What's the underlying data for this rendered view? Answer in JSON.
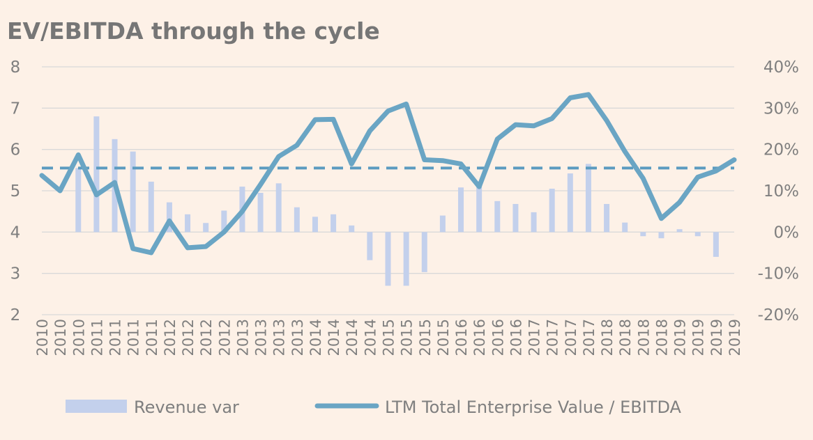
{
  "chart_data": {
    "type": "bar+line",
    "title": "EV/EBITDA through the cycle",
    "x": [
      "2010",
      "2010",
      "2010",
      "2011",
      "2011",
      "2011",
      "2011",
      "2012",
      "2012",
      "2012",
      "2012",
      "2013",
      "2013",
      "2013",
      "2013",
      "2014",
      "2014",
      "2014",
      "2014",
      "2015",
      "2015",
      "2015",
      "2015",
      "2016",
      "2016",
      "2016",
      "2016",
      "2017",
      "2017",
      "2017",
      "2017",
      "2018",
      "2018",
      "2018",
      "2018",
      "2019",
      "2019",
      "2019",
      "2019"
    ],
    "left_axis": {
      "ylim": [
        2,
        8
      ],
      "ticks": [
        "2",
        "3",
        "4",
        "5",
        "6",
        "7",
        "8"
      ]
    },
    "right_axis": {
      "ylim": [
        -0.2,
        0.4
      ],
      "ticks": [
        "-20%",
        "-10%",
        "0%",
        "10%",
        "20%",
        "30%",
        "40%"
      ]
    },
    "grid": true,
    "legend_position": "bottom",
    "series": [
      {
        "name": "Revenue var",
        "type": "bar",
        "axis": "right",
        "color": "#c3d0ec",
        "values": [
          0,
          0,
          0.155,
          0.28,
          0.225,
          0.195,
          0.122,
          0.072,
          0.043,
          0.022,
          0.052,
          0.11,
          0.095,
          0.118,
          0.06,
          0.037,
          0.043,
          0.016,
          -0.068,
          -0.13,
          -0.13,
          -0.097,
          0.04,
          0.108,
          0.12,
          0.075,
          0.068,
          0.048,
          0.105,
          0.142,
          0.165,
          0.068,
          0.023,
          -0.01,
          -0.015,
          0.007,
          -0.01,
          -0.06,
          0
        ]
      },
      {
        "name": "LTM Total Enterprise Value / EBITDA",
        "type": "line",
        "axis": "left",
        "color": "#6aa5c4",
        "values": [
          5.37,
          5.0,
          5.87,
          4.9,
          5.2,
          3.6,
          3.5,
          4.27,
          3.62,
          3.65,
          4.0,
          4.5,
          5.15,
          5.83,
          6.1,
          6.72,
          6.73,
          5.65,
          6.45,
          6.93,
          7.1,
          5.75,
          5.73,
          5.65,
          5.1,
          6.25,
          6.6,
          6.57,
          6.75,
          7.25,
          7.33,
          6.7,
          5.95,
          5.3,
          4.33,
          4.72,
          5.33,
          5.48,
          5.75
        ]
      }
    ],
    "reference_line": {
      "axis": "left",
      "value": 5.55,
      "style": "dashed",
      "color": "#5b9bc0"
    }
  }
}
